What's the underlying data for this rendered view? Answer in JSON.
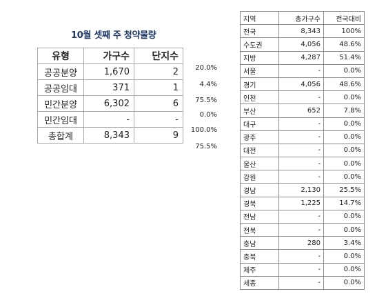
{
  "title": "10월 셋째 주 청약물량",
  "left_table": {
    "headers": [
      "유형",
      "가구수",
      "단지수"
    ],
    "rows": [
      {
        "type": "공공분양",
        "households": "1,670",
        "complexes": "2",
        "pct": "20.0%"
      },
      {
        "type": "공공임대",
        "households": "371",
        "complexes": "1",
        "pct": "4.4%"
      },
      {
        "type": "민간분양",
        "households": "6,302",
        "complexes": "6",
        "pct": "75.5%"
      },
      {
        "type": "민간임대",
        "households": "-",
        "complexes": "-",
        "pct": "0.0%"
      },
      {
        "type": "총합계",
        "households": "8,343",
        "complexes": "9",
        "pct": "100.0%"
      }
    ],
    "extra_pct": "75.5%"
  },
  "right_table": {
    "headers": [
      "지역",
      "총가구수",
      "전국대비"
    ],
    "rows": [
      {
        "region": "전국",
        "households": "8,343",
        "ratio": "100%"
      },
      {
        "region": "수도권",
        "households": "4,056",
        "ratio": "48.6%"
      },
      {
        "region": "지방",
        "households": "4,287",
        "ratio": "51.4%"
      },
      {
        "region": "서울",
        "households": "-",
        "ratio": "0.0%"
      },
      {
        "region": "경기",
        "households": "4,056",
        "ratio": "48.6%"
      },
      {
        "region": "인천",
        "households": "-",
        "ratio": "0.0%"
      },
      {
        "region": "부산",
        "households": "652",
        "ratio": "7.8%"
      },
      {
        "region": "대구",
        "households": "-",
        "ratio": "0.0%"
      },
      {
        "region": "광주",
        "households": "-",
        "ratio": "0.0%"
      },
      {
        "region": "대전",
        "households": "-",
        "ratio": "0.0%"
      },
      {
        "region": "울산",
        "households": "-",
        "ratio": "0.0%"
      },
      {
        "region": "강원",
        "households": "-",
        "ratio": "0.0%"
      },
      {
        "region": "경남",
        "households": "2,130",
        "ratio": "25.5%"
      },
      {
        "region": "경북",
        "households": "1,225",
        "ratio": "14.7%"
      },
      {
        "region": "전남",
        "households": "-",
        "ratio": "0.0%"
      },
      {
        "region": "전북",
        "households": "-",
        "ratio": "0.0%"
      },
      {
        "region": "충남",
        "households": "280",
        "ratio": "3.4%"
      },
      {
        "region": "충북",
        "households": "-",
        "ratio": "0.0%"
      },
      {
        "region": "제주",
        "households": "-",
        "ratio": "0.0%"
      },
      {
        "region": "세종",
        "households": "-",
        "ratio": "0.0%"
      }
    ]
  },
  "colors": {
    "title": "#1f3864",
    "border": "#a6a6a6"
  }
}
